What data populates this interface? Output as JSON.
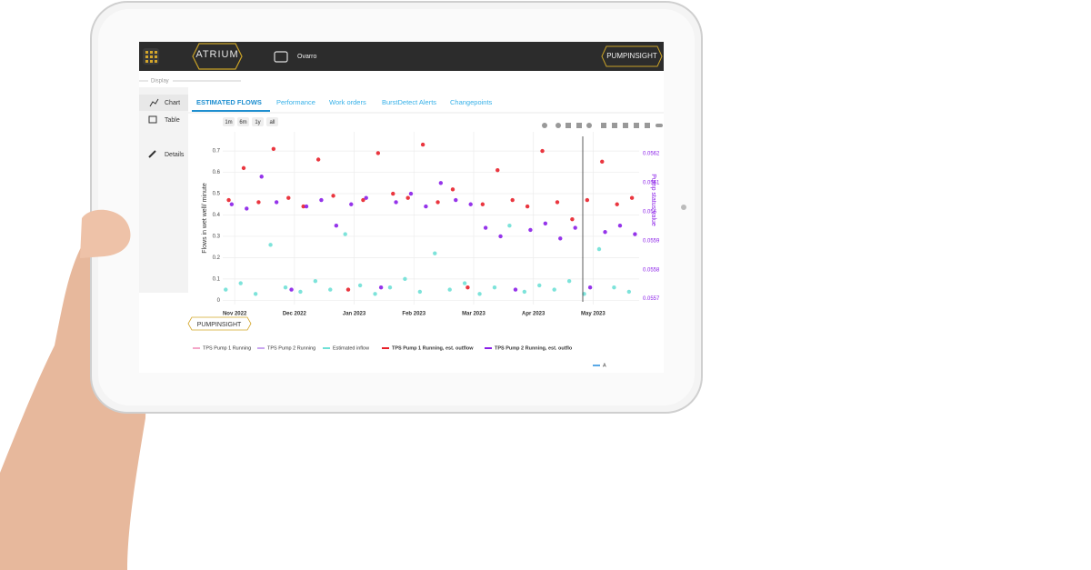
{
  "header": {
    "brand": "ATRIUM",
    "site": "Ovarro",
    "product": "PUMPINSIGHT"
  },
  "sidebar": {
    "section": "Display",
    "items": [
      "Chart",
      "Table",
      "Details"
    ]
  },
  "tabs": [
    "ESTIMATED FLOWS",
    "Performance",
    "Work orders",
    "BurstDetect Alerts",
    "Changepoints"
  ],
  "range_buttons": [
    "1m",
    "6m",
    "1y",
    "all"
  ],
  "footer_logo": "PUMPINSIGHT",
  "chart_data": {
    "type": "scatter",
    "y_label": "Flows in wet well/ minute",
    "y2_label": "Pump status value",
    "xlim": [
      -0.2,
      6.77
    ],
    "xticks": [
      {
        "value": 0,
        "label": "Nov 2022"
      },
      {
        "value": 1,
        "label": "Dec 2022"
      },
      {
        "value": 2,
        "label": "Jan 2023"
      },
      {
        "value": 3,
        "label": "Feb 2023"
      },
      {
        "value": 4,
        "label": "Mar 2023"
      },
      {
        "value": 5,
        "label": "Apr 2023"
      },
      {
        "value": 6,
        "label": "May 2023"
      }
    ],
    "ylim": [
      -0.02,
      0.79
    ],
    "yticks": [
      0,
      0.1,
      0.2,
      0.3,
      0.4,
      0.5,
      0.6,
      0.7
    ],
    "y2lim": [
      0.05568,
      0.056275
    ],
    "y2ticks": [
      0.0557,
      0.0558,
      0.0559,
      0.056,
      0.0561,
      0.0562
    ],
    "grid": true,
    "series": [
      {
        "name": "TPS Pump 1 Running",
        "color": "#f4a6c8",
        "x": [],
        "values": []
      },
      {
        "name": "TPS Pump 2 Running",
        "color": "#c9a6f0",
        "x": [],
        "values": []
      },
      {
        "name": "Estimated inflow",
        "color": "#6fe0d6",
        "x": [
          -0.15,
          0.1,
          0.35,
          0.6,
          0.85,
          1.1,
          1.35,
          1.6,
          1.85,
          2.1,
          2.35,
          2.6,
          2.85,
          3.1,
          3.35,
          3.6,
          3.85,
          4.1,
          4.35,
          4.6,
          4.85,
          5.1,
          5.35,
          5.6,
          5.85,
          6.1,
          6.35,
          6.6
        ],
        "values": [
          0.05,
          0.08,
          0.03,
          0.26,
          0.06,
          0.04,
          0.09,
          0.05,
          0.31,
          0.07,
          0.03,
          0.06,
          0.1,
          0.04,
          0.22,
          0.05,
          0.08,
          0.03,
          0.06,
          0.35,
          0.04,
          0.07,
          0.05,
          0.09,
          0.03,
          0.24,
          0.06,
          0.04
        ]
      },
      {
        "name": "TPS Pump 1 Running, est. outflow",
        "color": "#e8202a",
        "x": [
          -0.1,
          0.15,
          0.4,
          0.65,
          0.9,
          1.15,
          1.4,
          1.65,
          1.9,
          2.15,
          2.4,
          2.65,
          2.9,
          3.15,
          3.4,
          3.65,
          3.9,
          4.15,
          4.4,
          4.65,
          4.9,
          5.15,
          5.4,
          5.65,
          5.9,
          6.15,
          6.4,
          6.65
        ],
        "values": [
          0.47,
          0.62,
          0.46,
          0.71,
          0.48,
          0.44,
          0.66,
          0.49,
          0.05,
          0.47,
          0.69,
          0.5,
          0.48,
          0.73,
          0.46,
          0.52,
          0.06,
          0.45,
          0.61,
          0.47,
          0.44,
          0.7,
          0.46,
          0.38,
          0.47,
          0.65,
          0.45,
          0.48
        ]
      },
      {
        "name": "TPS Pump 2 Running, est. outflo",
        "color": "#8a1ee8",
        "x": [
          -0.05,
          0.2,
          0.45,
          0.7,
          0.95,
          1.2,
          1.45,
          1.7,
          1.95,
          2.2,
          2.45,
          2.7,
          2.95,
          3.2,
          3.45,
          3.7,
          3.95,
          4.2,
          4.45,
          4.7,
          4.95,
          5.2,
          5.45,
          5.7,
          5.95,
          6.2,
          6.45,
          6.7
        ],
        "values": [
          0.45,
          0.43,
          0.58,
          0.46,
          0.05,
          0.44,
          0.47,
          0.35,
          0.45,
          0.48,
          0.06,
          0.46,
          0.5,
          0.44,
          0.55,
          0.47,
          0.45,
          0.34,
          0.3,
          0.05,
          0.33,
          0.36,
          0.29,
          0.34,
          0.06,
          0.32,
          0.35,
          0.31
        ]
      },
      {
        "name": "A",
        "color": "#5aa9e6",
        "x": [],
        "values": []
      }
    ]
  }
}
